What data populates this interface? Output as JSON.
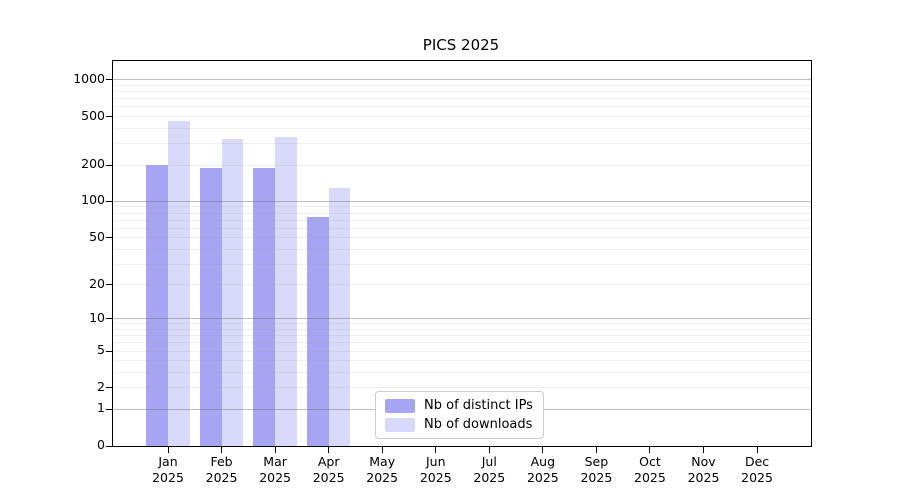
{
  "title": "PICS 2025",
  "year": "2025",
  "chart_data": {
    "type": "bar",
    "title": "PICS 2025",
    "categories": [
      "Jan",
      "Feb",
      "Mar",
      "Apr",
      "May",
      "Jun",
      "Jul",
      "Aug",
      "Sep",
      "Oct",
      "Nov",
      "Dec"
    ],
    "category_year": "2025",
    "series": [
      {
        "name": "Nb of distinct IPs",
        "color": "#a5a5f1",
        "values": [
          200,
          189,
          189,
          74,
          0,
          0,
          0,
          0,
          0,
          0,
          0,
          0
        ]
      },
      {
        "name": "Nb of downloads",
        "color": "#d9d9f9",
        "values": [
          460,
          330,
          340,
          130,
          0,
          0,
          0,
          0,
          0,
          0,
          0,
          0
        ]
      }
    ],
    "xlabel": "",
    "ylabel": "",
    "yticks": [
      0,
      1,
      2,
      5,
      10,
      20,
      50,
      100,
      200,
      500,
      1000
    ],
    "yscale": "symlog",
    "ylim": [
      0,
      1430
    ],
    "grid": "horizontal; major lines at 1, 10, 100, 1000; faint minor lines at 2-9 per decade",
    "legend_position": "bottom-center-left inside plot",
    "legend": [
      "Nb of distinct IPs",
      "Nb of downloads"
    ]
  },
  "colors": {
    "distinct_ips": "#a5a5f1",
    "downloads": "#d9d9f9",
    "axis": "#000000",
    "major_grid": "#6e6e6e",
    "minor_grid": "#969696",
    "background": "#ffffff",
    "legend_border": "#cccccc"
  }
}
